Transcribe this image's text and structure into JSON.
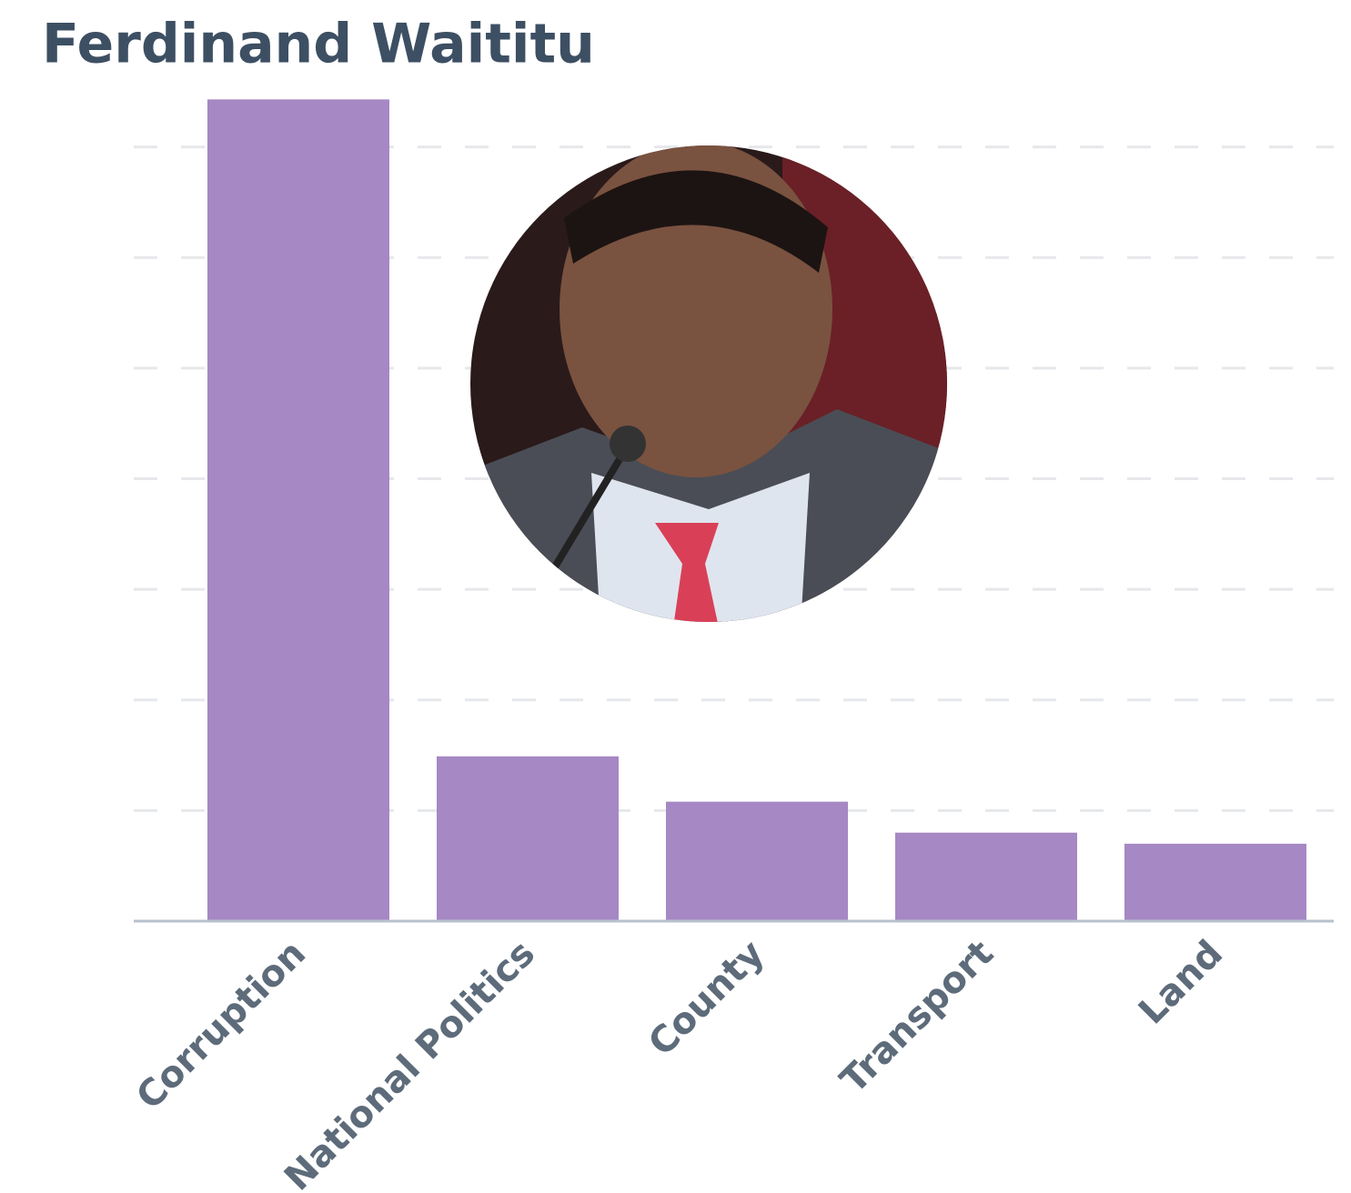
{
  "chart_data": {
    "type": "bar",
    "title": "Ferdinand Waititu",
    "categories": [
      "Corruption",
      "National Politics",
      "County",
      "Transport",
      "Land"
    ],
    "values": [
      7.43,
      1.49,
      1.08,
      0.8,
      0.7
    ],
    "color": "#a688c4",
    "ylim": [
      0,
      8
    ],
    "yticks": [
      0,
      1,
      2,
      3,
      4,
      5,
      6,
      7
    ],
    "grid": true
  }
}
